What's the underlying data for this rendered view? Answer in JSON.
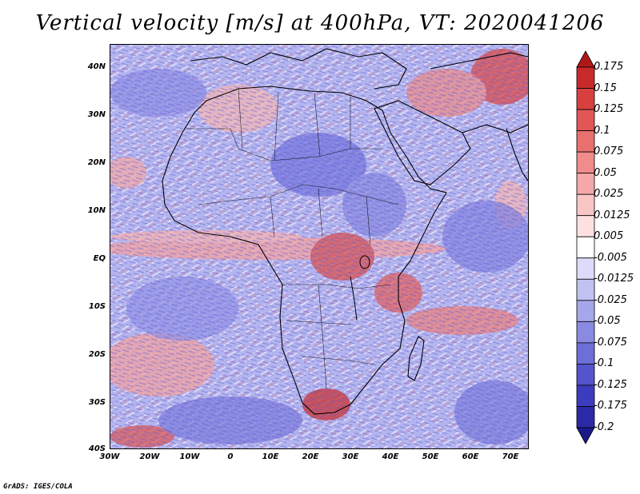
{
  "title": "Vertical velocity [m/s] at 400hPa, VT: 2020041206",
  "credit": "GrADS: IGES/COLA",
  "lat_labels": [
    "40N",
    "30N",
    "20N",
    "10N",
    "EQ",
    "10S",
    "20S",
    "30S",
    "40S"
  ],
  "lon_labels": [
    "30W",
    "20W",
    "10W",
    "0",
    "10E",
    "20E",
    "30E",
    "40E",
    "50E",
    "60E",
    "70E"
  ],
  "colorbar_labels": [
    "0.175",
    "0.15",
    "0.125",
    "0.1",
    "0.075",
    "0.05",
    "0.025",
    "0.0125",
    "0.005",
    "-0.005",
    "-0.0125",
    "-0.025",
    "-0.05",
    "-0.075",
    "-0.1",
    "-0.125",
    "-0.175",
    "-0.2"
  ],
  "colorbar_colors": [
    "#b01818",
    "#c82a2a",
    "#d84040",
    "#e25656",
    "#ea7070",
    "#f08c8c",
    "#f5a8a8",
    "#f9c6c6",
    "#fde0e0",
    "#ffffff",
    "#dcdcfa",
    "#c2c2f2",
    "#a6a6ea",
    "#8a8ae2",
    "#6e6ed8",
    "#5454cc",
    "#3c3cbe",
    "#2a2aa6",
    "#1a1a8a"
  ]
}
